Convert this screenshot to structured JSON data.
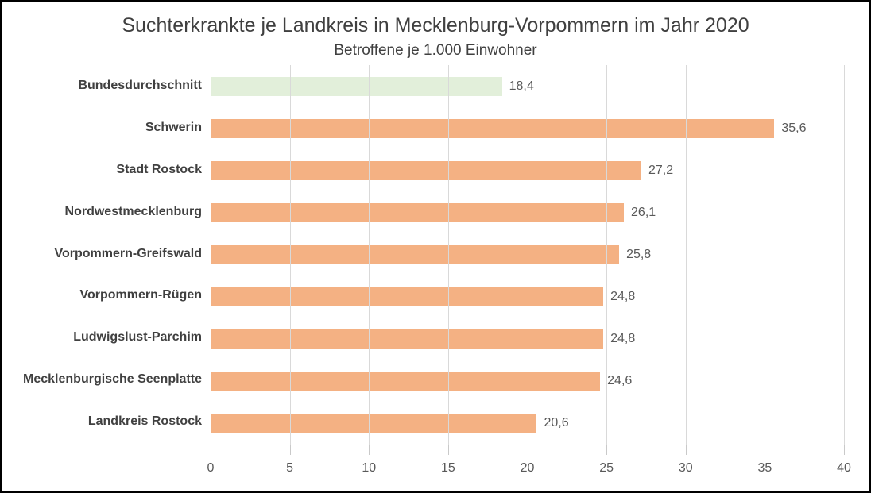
{
  "chart_data": {
    "type": "bar",
    "orientation": "horizontal",
    "title": "Suchterkrankte je Landkreis in Mecklenburg-Vorpommern im Jahr 2020",
    "subtitle": "Betroffene je 1.000 Einwohner",
    "categories": [
      "Bundesdurchschnitt",
      "Schwerin",
      "Stadt Rostock",
      "Nordwestmecklenburg",
      "Vorpommern-Greifswald",
      "Vorpommern-Rügen",
      "Ludwigslust-Parchim",
      "Mecklenburgische Seenplatte",
      "Landkreis Rostock"
    ],
    "values": [
      18.4,
      35.6,
      27.2,
      26.1,
      25.8,
      24.8,
      24.8,
      24.6,
      20.6
    ],
    "value_labels": [
      "18,4",
      "35,6",
      "27,2",
      "26,1",
      "25,8",
      "24,8",
      "24,8",
      "24,6",
      "20,6"
    ],
    "bar_colors": [
      "#e2efda",
      "#f4b183",
      "#f4b183",
      "#f4b183",
      "#f4b183",
      "#f4b183",
      "#f4b183",
      "#f4b183",
      "#f4b183"
    ],
    "x_ticks": [
      "0",
      "5",
      "10",
      "15",
      "20",
      "25",
      "30",
      "35",
      "40"
    ],
    "xlim": [
      0,
      40
    ],
    "grid": "vertical-only",
    "legend": "none",
    "colors": {
      "default_bar": "#f4b183",
      "highlight_bar": "#e2efda",
      "gridline": "#d9d9d9",
      "title_text": "#404040",
      "axis_text": "#595959",
      "frame_border": "#000000"
    }
  }
}
